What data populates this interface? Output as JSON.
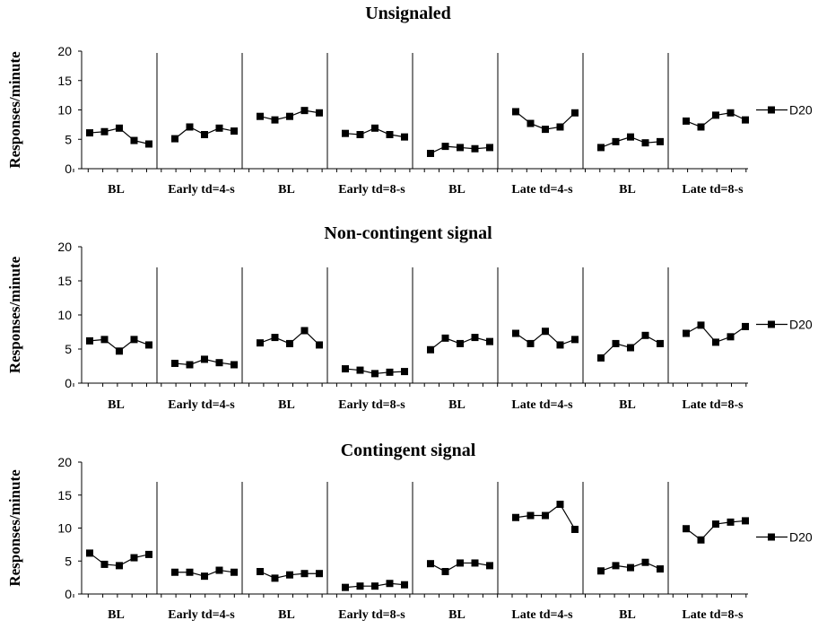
{
  "chart_data": [
    {
      "type": "line",
      "title": "Unsignaled",
      "ylabel": "Responses/minute",
      "ylim": [
        0,
        20
      ],
      "yticks": [
        "0",
        "5",
        "10",
        "15",
        "20"
      ],
      "legend_position": "right",
      "series_name": "D20",
      "phases": [
        {
          "label": "BL",
          "values": [
            6.1,
            6.3,
            6.9,
            4.8,
            4.2
          ]
        },
        {
          "label": "Early td=4-s",
          "values": [
            5.1,
            7.1,
            5.8,
            6.9,
            6.4
          ]
        },
        {
          "label": "BL",
          "values": [
            8.9,
            8.3,
            8.9,
            9.9,
            9.5
          ]
        },
        {
          "label": "Early td=8-s",
          "values": [
            6.0,
            5.8,
            6.9,
            5.8,
            5.4
          ]
        },
        {
          "label": "BL",
          "values": [
            2.6,
            3.8,
            3.6,
            3.4,
            3.6
          ]
        },
        {
          "label": "Late td=4-s",
          "values": [
            9.7,
            7.7,
            6.7,
            7.1,
            9.5
          ]
        },
        {
          "label": "BL",
          "values": [
            3.6,
            4.6,
            5.4,
            4.4,
            4.6
          ]
        },
        {
          "label": "Late td=8-s",
          "values": [
            8.1,
            7.1,
            9.1,
            9.5,
            8.3
          ]
        }
      ]
    },
    {
      "type": "line",
      "title": "Non-contingent signal",
      "ylabel": "Responses/minute",
      "ylim": [
        0,
        20
      ],
      "yticks": [
        "0",
        "5",
        "10",
        "15",
        "20"
      ],
      "legend_position": "right",
      "series_name": "D20",
      "phases": [
        {
          "label": "BL",
          "values": [
            6.2,
            6.4,
            4.7,
            6.4,
            5.6
          ]
        },
        {
          "label": "Early td=4-s",
          "values": [
            2.9,
            2.7,
            3.5,
            3.0,
            2.7
          ]
        },
        {
          "label": "BL",
          "values": [
            5.9,
            6.7,
            5.8,
            7.7,
            5.6
          ]
        },
        {
          "label": "Early td=8-s",
          "values": [
            2.1,
            1.9,
            1.4,
            1.6,
            1.7
          ]
        },
        {
          "label": "BL",
          "values": [
            4.9,
            6.6,
            5.8,
            6.7,
            6.1
          ]
        },
        {
          "label": "Late td=4-s",
          "values": [
            7.3,
            5.8,
            7.6,
            5.6,
            6.4
          ]
        },
        {
          "label": "BL",
          "values": [
            3.7,
            5.8,
            5.2,
            7.0,
            5.8
          ]
        },
        {
          "label": "Late td=8-s",
          "values": [
            7.3,
            8.5,
            6.0,
            6.8,
            8.3
          ]
        }
      ]
    },
    {
      "type": "line",
      "title": "Contingent signal",
      "ylabel": "Responses/minute",
      "ylim": [
        0,
        20
      ],
      "yticks": [
        "0",
        "5",
        "10",
        "15",
        "20"
      ],
      "legend_position": "right",
      "series_name": "D20",
      "phases": [
        {
          "label": "BL",
          "values": [
            6.2,
            4.5,
            4.3,
            5.5,
            6.0
          ]
        },
        {
          "label": "Early td=4-s",
          "values": [
            3.3,
            3.3,
            2.7,
            3.6,
            3.3
          ]
        },
        {
          "label": "BL",
          "values": [
            3.4,
            2.4,
            2.9,
            3.1,
            3.1
          ]
        },
        {
          "label": "Early td=8-s",
          "values": [
            1.0,
            1.2,
            1.2,
            1.6,
            1.4
          ]
        },
        {
          "label": "BL",
          "values": [
            4.6,
            3.4,
            4.7,
            4.7,
            4.3
          ]
        },
        {
          "label": "Late td=4-s",
          "values": [
            11.6,
            11.9,
            11.9,
            13.6,
            9.8
          ]
        },
        {
          "label": "BL",
          "values": [
            3.5,
            4.3,
            4.0,
            4.8,
            3.8
          ]
        },
        {
          "label": "Late td=8-s",
          "values": [
            9.9,
            8.2,
            10.6,
            10.9,
            11.1
          ]
        }
      ]
    }
  ]
}
